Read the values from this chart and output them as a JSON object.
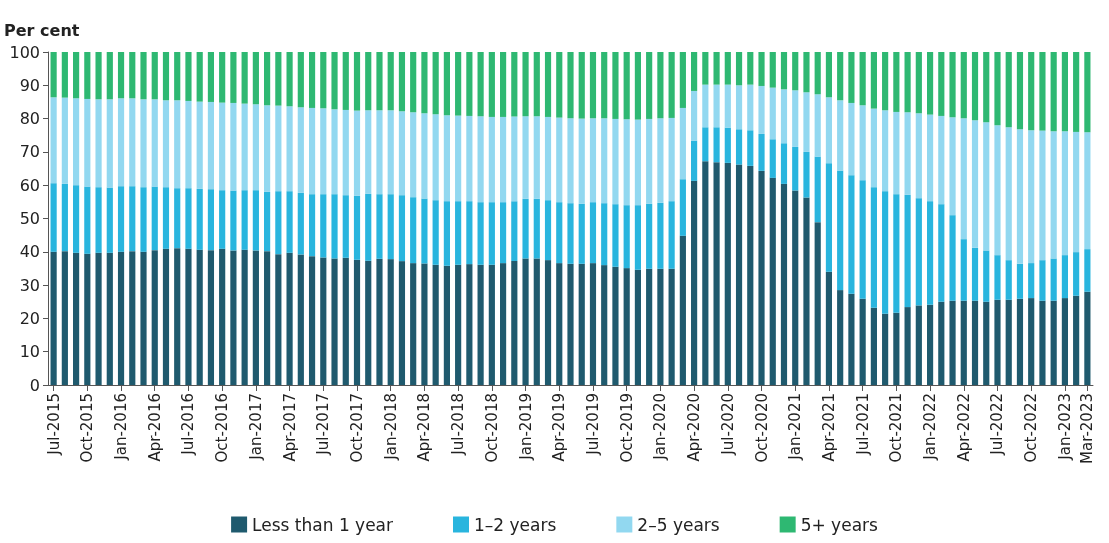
{
  "chart_data": {
    "type": "bar",
    "stacked": true,
    "ylabel": "Per cent",
    "categories": [
      "Jul-2015",
      null,
      null,
      "Oct-2015",
      null,
      null,
      "Jan-2016",
      null,
      null,
      "Apr-2016",
      null,
      null,
      "Jul-2016",
      null,
      null,
      "Oct-2016",
      null,
      null,
      "Jan-2017",
      null,
      null,
      "Apr-2017",
      null,
      null,
      "Jul-2017",
      null,
      null,
      "Oct-2017",
      null,
      null,
      "Jan-2018",
      null,
      null,
      "Apr-2018",
      null,
      null,
      "Jul-2018",
      null,
      null,
      "Oct-2018",
      null,
      null,
      "Jan-2019",
      null,
      null,
      "Apr-2019",
      null,
      null,
      "Jul-2019",
      null,
      null,
      "Oct-2019",
      null,
      null,
      "Jan-2020",
      null,
      null,
      "Apr-2020",
      null,
      null,
      "Jul-2020",
      null,
      null,
      "Oct-2020",
      null,
      null,
      "Jan-2021",
      null,
      null,
      "Apr-2021",
      null,
      null,
      "Jul-2021",
      null,
      null,
      "Oct-2021",
      null,
      null,
      "Jan-2022",
      null,
      null,
      "Apr-2022",
      null,
      null,
      "Jul-2022",
      null,
      null,
      "Oct-2022",
      null,
      null,
      "Jan-2023",
      null,
      "Mar-2023"
    ],
    "series": [
      {
        "name": "Less than 1 year",
        "color": "#1f5a6e",
        "values": [
          40.0,
          40.2,
          39.7,
          39.4,
          39.7,
          39.7,
          40.0,
          40.2,
          40.0,
          40.5,
          40.9,
          41.1,
          40.9,
          40.6,
          40.5,
          40.9,
          40.4,
          40.6,
          40.4,
          40.2,
          39.3,
          39.7,
          39.2,
          38.7,
          38.3,
          38.0,
          38.2,
          37.6,
          37.3,
          37.9,
          37.8,
          37.2,
          36.6,
          36.5,
          36.1,
          35.8,
          36.1,
          36.3,
          36.1,
          36.1,
          36.6,
          37.2,
          38.0,
          38.0,
          37.5,
          36.6,
          36.4,
          36.4,
          36.6,
          36.0,
          35.5,
          35.1,
          34.6,
          34.9,
          34.9,
          34.9,
          44.8,
          61.3,
          67.2,
          66.9,
          66.7,
          66.2,
          65.8,
          64.3,
          62.2,
          60.4,
          58.4,
          56.3,
          48.9,
          34.0,
          28.5,
          27.4,
          25.9,
          23.2,
          21.4,
          21.7,
          23.4,
          23.9,
          24.1,
          25.0,
          25.3,
          25.3,
          25.3,
          25.0,
          25.6,
          25.6,
          25.9,
          26.1,
          25.3,
          25.3,
          26.1,
          26.8,
          28.0
        ]
      },
      {
        "name": "1–2 years",
        "color": "#29b5de",
        "values": [
          20.6,
          20.2,
          20.3,
          20.2,
          19.7,
          19.6,
          19.7,
          19.5,
          19.4,
          19.1,
          18.5,
          18.0,
          18.2,
          18.3,
          18.3,
          17.6,
          18.0,
          17.9,
          18.1,
          17.8,
          18.9,
          18.5,
          18.5,
          18.6,
          19.0,
          19.3,
          18.8,
          19.2,
          20.1,
          19.4,
          19.5,
          19.8,
          19.8,
          19.5,
          19.4,
          19.4,
          19.1,
          18.9,
          18.8,
          18.8,
          18.3,
          18.0,
          17.9,
          17.9,
          18.0,
          18.3,
          18.2,
          18.0,
          18.3,
          18.6,
          18.8,
          18.9,
          19.4,
          19.5,
          19.8,
          20.3,
          17.0,
          12.1,
          10.2,
          10.5,
          10.6,
          10.6,
          10.7,
          11.1,
          11.6,
          12.2,
          13.1,
          13.7,
          19.7,
          32.6,
          35.9,
          35.6,
          35.6,
          36.2,
          36.8,
          35.6,
          33.7,
          32.2,
          31.1,
          29.3,
          25.7,
          18.5,
          15.9,
          15.4,
          13.4,
          11.9,
          10.5,
          10.5,
          12.2,
          12.7,
          12.9,
          13.1,
          12.8
        ]
      },
      {
        "name": "2–5 years",
        "color": "#92d8f0",
        "values": [
          25.8,
          25.9,
          26.1,
          26.3,
          26.4,
          26.5,
          26.4,
          26.4,
          26.4,
          26.2,
          26.1,
          26.4,
          26.2,
          26.2,
          26.2,
          26.3,
          26.3,
          26.0,
          25.8,
          26.0,
          25.7,
          25.5,
          25.7,
          25.9,
          25.8,
          25.5,
          25.6,
          25.6,
          25.1,
          25.2,
          25.2,
          25.2,
          25.5,
          25.6,
          25.8,
          25.8,
          25.7,
          25.6,
          25.8,
          25.6,
          25.6,
          25.4,
          24.8,
          24.8,
          25.0,
          25.4,
          25.5,
          25.6,
          25.2,
          25.5,
          25.6,
          25.8,
          25.7,
          25.5,
          25.4,
          25.0,
          21.4,
          14.9,
          12.8,
          12.8,
          12.9,
          13.2,
          13.7,
          14.4,
          15.5,
          16.2,
          17.0,
          17.9,
          18.7,
          19.8,
          21.1,
          21.7,
          22.5,
          23.6,
          24.3,
          24.7,
          24.8,
          25.5,
          26.0,
          26.5,
          29.4,
          36.3,
          38.3,
          38.5,
          39.0,
          39.9,
          40.4,
          39.9,
          38.9,
          38.2,
          37.2,
          36.1,
          35.1
        ]
      },
      {
        "name": "5+ years",
        "color": "#2eb872",
        "values": [
          13.6,
          13.7,
          13.9,
          14.1,
          14.2,
          14.2,
          13.9,
          13.9,
          14.2,
          14.2,
          14.5,
          14.5,
          14.7,
          14.9,
          15.0,
          15.2,
          15.3,
          15.5,
          15.7,
          16.0,
          16.1,
          16.3,
          16.6,
          16.8,
          16.9,
          17.2,
          17.4,
          17.6,
          17.5,
          17.5,
          17.5,
          17.8,
          18.1,
          18.4,
          18.7,
          19.0,
          19.1,
          19.2,
          19.3,
          19.5,
          19.5,
          19.4,
          19.3,
          19.3,
          19.5,
          19.7,
          19.9,
          20.0,
          19.9,
          19.9,
          20.1,
          20.2,
          20.3,
          20.1,
          19.9,
          19.8,
          16.8,
          11.7,
          9.8,
          9.8,
          9.8,
          10.0,
          9.8,
          10.2,
          10.7,
          11.2,
          11.5,
          12.1,
          12.7,
          13.6,
          14.5,
          15.3,
          16.0,
          17.0,
          17.5,
          18.0,
          18.1,
          18.4,
          18.8,
          19.2,
          19.6,
          19.9,
          20.5,
          21.1,
          22.0,
          22.6,
          23.2,
          23.5,
          23.6,
          23.8,
          23.8,
          24.0,
          24.1
        ]
      }
    ],
    "ylim": [
      0,
      100
    ],
    "yticks": [
      0,
      10,
      20,
      30,
      40,
      50,
      60,
      70,
      80,
      90,
      100
    ],
    "grid": false,
    "legend": "bottom"
  }
}
